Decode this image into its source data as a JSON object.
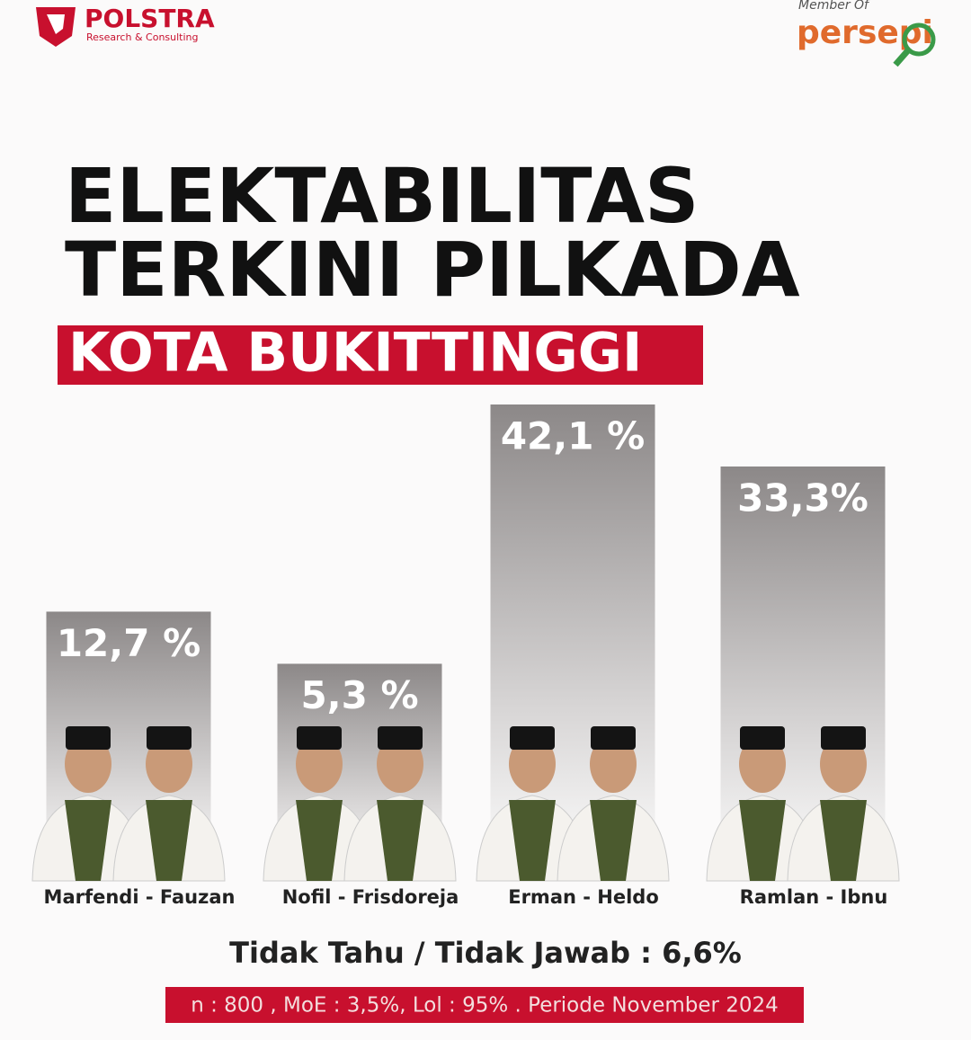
{
  "brand": {
    "name": "POLSTRA",
    "tagline": "Research & Consulting",
    "member_label": "Member Of",
    "member_name": "persepi"
  },
  "chart_data": {
    "type": "bar",
    "title": [
      "ELEKTABILITAS",
      "TERKINI PILKADA"
    ],
    "subtitle": "KOTA BUKITTINGGI",
    "categories": [
      "Marfendi - Fauzan",
      "Nofil - Frisdoreja",
      "Erman - Heldo",
      "Ramlan - Ibnu"
    ],
    "values": [
      12.7,
      5.3,
      42.1,
      33.3
    ],
    "value_labels": [
      "12,7 %",
      "5,3 %",
      "42,1 %",
      "33,3%"
    ],
    "color": "#8c8888",
    "annotation": "Tidak Tahu / Tidak Jawab : 6,6%",
    "footnote": "n : 800 , MoE : 3,5%, Lol : 95% . Periode November 2024"
  }
}
